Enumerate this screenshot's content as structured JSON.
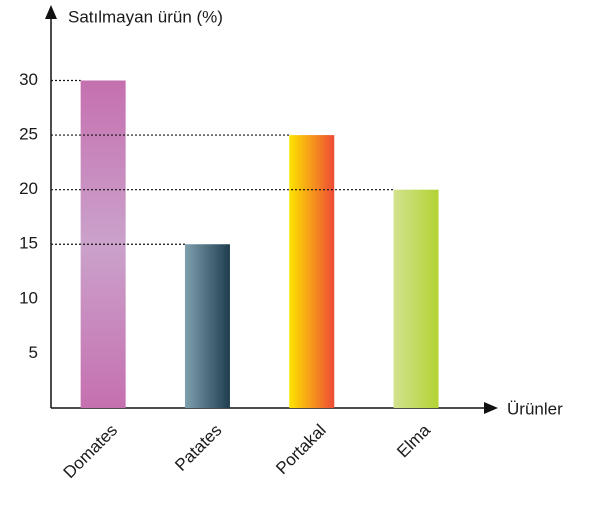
{
  "chart_data": {
    "type": "bar",
    "y_label": "Satılmayan ürün (%)",
    "x_label": "Ürünler",
    "categories": [
      "Domates",
      "Patates",
      "Portakal",
      "Elma"
    ],
    "values": [
      30,
      15,
      25,
      20
    ],
    "colors": [
      [
        "#c570b0",
        "#cba2cb",
        "vertical"
      ],
      [
        "#7fa0ae",
        "#1f3d4f",
        "horizontal"
      ],
      [
        "#fde400",
        "#ee4a36",
        "horizontal"
      ],
      [
        "#d2e28f",
        "#b3d334",
        "horizontal"
      ]
    ],
    "ylim": [
      0,
      36
    ],
    "yticks": [
      5,
      10,
      15,
      20,
      25,
      30
    ],
    "grid": false
  }
}
